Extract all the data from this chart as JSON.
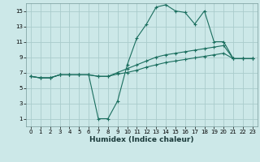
{
  "background_color": "#cce8e8",
  "grid_color": "#aacccc",
  "line_color": "#1a6e5e",
  "xlabel": "Humidex (Indice chaleur)",
  "xlim": [
    -0.5,
    23.5
  ],
  "ylim": [
    0,
    16
  ],
  "xticks": [
    0,
    1,
    2,
    3,
    4,
    5,
    6,
    7,
    8,
    9,
    10,
    11,
    12,
    13,
    14,
    15,
    16,
    17,
    18,
    19,
    20,
    21,
    22,
    23
  ],
  "yticks": [
    1,
    3,
    5,
    7,
    9,
    11,
    13,
    15
  ],
  "series": {
    "line1_x": [
      0,
      1,
      2,
      3,
      4,
      5,
      6,
      7,
      8,
      9,
      10,
      11,
      12,
      13,
      14,
      15,
      16,
      17,
      18,
      19,
      20,
      21,
      22,
      23
    ],
    "line1_y": [
      6.5,
      6.3,
      6.3,
      6.7,
      6.7,
      6.7,
      6.7,
      1.0,
      1.0,
      3.3,
      8.0,
      11.5,
      13.3,
      15.5,
      15.8,
      15.0,
      14.8,
      13.3,
      15.0,
      11.0,
      11.0,
      8.8,
      8.8,
      8.8
    ],
    "line2_x": [
      0,
      1,
      2,
      3,
      4,
      5,
      6,
      7,
      8,
      9,
      10,
      11,
      12,
      13,
      14,
      15,
      16,
      17,
      18,
      19,
      20,
      21,
      22,
      23
    ],
    "line2_y": [
      6.5,
      6.3,
      6.3,
      6.7,
      6.7,
      6.7,
      6.7,
      6.5,
      6.5,
      7.0,
      7.5,
      8.0,
      8.5,
      9.0,
      9.3,
      9.5,
      9.7,
      9.9,
      10.1,
      10.3,
      10.5,
      8.8,
      8.8,
      8.8
    ],
    "line3_x": [
      0,
      1,
      2,
      3,
      4,
      5,
      6,
      7,
      8,
      9,
      10,
      11,
      12,
      13,
      14,
      15,
      16,
      17,
      18,
      19,
      20,
      21,
      22,
      23
    ],
    "line3_y": [
      6.5,
      6.3,
      6.3,
      6.7,
      6.7,
      6.7,
      6.7,
      6.5,
      6.5,
      6.8,
      7.0,
      7.3,
      7.7,
      8.0,
      8.3,
      8.5,
      8.7,
      8.9,
      9.1,
      9.3,
      9.5,
      8.8,
      8.8,
      8.8
    ]
  },
  "figsize": [
    3.2,
    2.0
  ],
  "dpi": 100
}
